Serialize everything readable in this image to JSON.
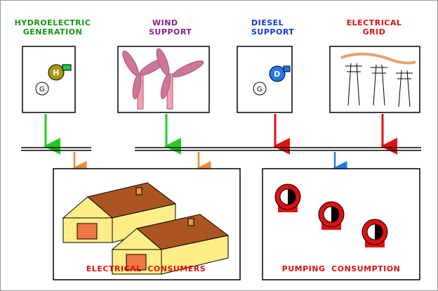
{
  "sources": [
    {
      "lines": [
        "HYDROELECTRIC",
        "GENERATION"
      ],
      "symbols": [
        "H",
        "G"
      ]
    },
    {
      "lines": [
        "WIND",
        "SUPPORT"
      ]
    },
    {
      "lines": [
        "DIESEL",
        "SUPPORT"
      ],
      "symbols": [
        "D",
        "G"
      ]
    },
    {
      "lines": [
        "ELECTRICAL",
        "GRID"
      ]
    }
  ],
  "consumers": [
    {
      "label": "ELECTRICAL  CONSUMERS"
    },
    {
      "label": "PUMPING  CONSUMPTION"
    }
  ]
}
